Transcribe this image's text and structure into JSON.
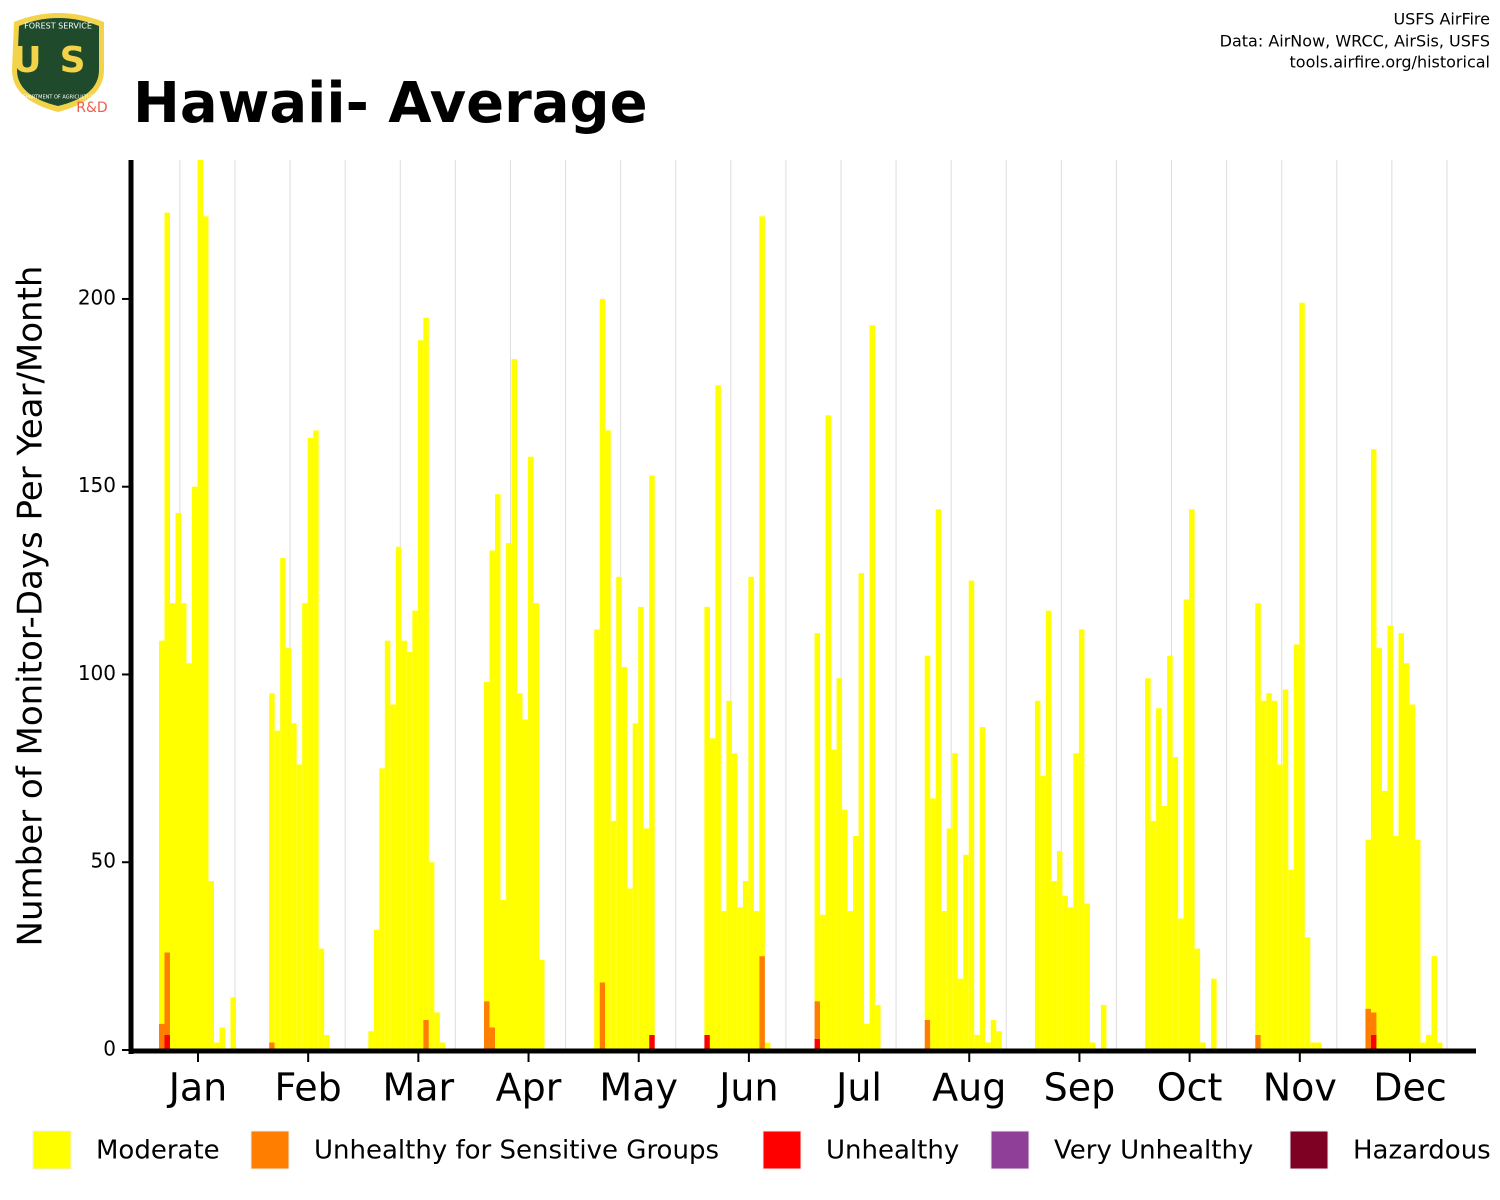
{
  "logo": {
    "top": "FOREST SERVICE",
    "letters": "US",
    "bottom": "DEPARTMENT OF AGRICULTURE",
    "tag": "R&D"
  },
  "credits": [
    "USFS AirFire",
    "Data: AirNow, WRCC, AirSis, USFS",
    "tools.airfire.org/historical"
  ],
  "chart_data": {
    "type": "bar",
    "stacked": true,
    "title": "Hawaii- Average",
    "y_label": "Number of Monitor-Days Per Year/Month",
    "categories": [
      "Jan",
      "Feb",
      "Mar",
      "Apr",
      "May",
      "Jun",
      "Jul",
      "Aug",
      "Sep",
      "Oct",
      "Nov",
      "Dec"
    ],
    "ylim": [
      0,
      237
    ],
    "yticks": [
      0,
      50,
      100,
      150,
      200
    ],
    "grid": true,
    "series": [
      {
        "name": "Moderate",
        "color": "#ffff00",
        "values": [
          [
            0,
            0,
            102,
            197,
            119,
            143,
            119,
            103,
            150,
            240,
            222,
            45,
            2,
            6,
            0,
            14,
            0,
            0
          ],
          [
            0,
            0,
            93,
            85,
            131,
            107,
            87,
            76,
            119,
            163,
            165,
            27,
            4,
            0,
            0,
            0,
            0,
            0
          ],
          [
            5,
            32,
            75,
            109,
            92,
            134,
            109,
            106,
            117,
            189,
            187,
            50,
            10,
            2,
            0,
            0,
            0,
            0
          ],
          [
            0,
            85,
            127,
            148,
            40,
            135,
            184,
            95,
            88,
            158,
            119,
            24,
            0,
            0,
            0,
            0,
            0,
            0
          ],
          [
            0,
            112,
            182,
            165,
            61,
            126,
            102,
            43,
            87,
            118,
            59,
            149,
            0,
            0,
            0,
            0,
            0,
            0
          ],
          [
            0,
            114,
            83,
            177,
            37,
            93,
            79,
            38,
            45,
            126,
            37,
            197,
            2,
            0,
            0,
            0,
            0,
            0
          ],
          [
            0,
            98,
            36,
            169,
            80,
            99,
            64,
            37,
            57,
            127,
            7,
            193,
            12,
            0,
            0,
            0,
            0,
            0
          ],
          [
            0,
            97,
            67,
            144,
            37,
            59,
            79,
            19,
            52,
            125,
            4,
            86,
            2,
            8,
            5,
            0,
            0,
            0
          ],
          [
            0,
            93,
            73,
            117,
            45,
            53,
            41,
            38,
            79,
            112,
            39,
            2,
            0,
            12,
            0,
            0,
            0,
            0
          ],
          [
            0,
            99,
            61,
            91,
            65,
            105,
            78,
            35,
            120,
            144,
            27,
            2,
            0,
            19,
            0,
            0,
            0,
            0
          ],
          [
            0,
            115,
            93,
            95,
            93,
            76,
            96,
            48,
            108,
            199,
            30,
            2,
            2,
            0,
            0,
            0,
            0,
            0
          ],
          [
            0,
            45,
            150,
            107,
            69,
            113,
            57,
            111,
            103,
            92,
            56,
            2,
            4,
            25,
            2,
            0,
            0,
            0
          ]
        ]
      },
      {
        "name": "Unhealthy for Sensitive Groups",
        "color": "#ff7e00",
        "values": [
          [
            0,
            0,
            7,
            22,
            0,
            0,
            0,
            0,
            0,
            0,
            0,
            0,
            0,
            0,
            0,
            0,
            0,
            0
          ],
          [
            0,
            0,
            2,
            0,
            0,
            0,
            0,
            0,
            0,
            0,
            0,
            0,
            0,
            0,
            0,
            0,
            0,
            0
          ],
          [
            0,
            0,
            0,
            0,
            0,
            0,
            0,
            0,
            0,
            0,
            8,
            0,
            0,
            0,
            0,
            0,
            0,
            0
          ],
          [
            0,
            13,
            6,
            0,
            0,
            0,
            0,
            0,
            0,
            0,
            0,
            0,
            0,
            0,
            0,
            0,
            0,
            0
          ],
          [
            0,
            0,
            18,
            0,
            0,
            0,
            0,
            0,
            0,
            0,
            0,
            0,
            0,
            0,
            0,
            0,
            0,
            0
          ],
          [
            0,
            0,
            0,
            0,
            0,
            0,
            0,
            0,
            0,
            0,
            0,
            25,
            0,
            0,
            0,
            0,
            0,
            0
          ],
          [
            0,
            10,
            0,
            0,
            0,
            0,
            0,
            0,
            0,
            0,
            0,
            0,
            0,
            0,
            0,
            0,
            0,
            0
          ],
          [
            0,
            8,
            0,
            0,
            0,
            0,
            0,
            0,
            0,
            0,
            0,
            0,
            0,
            0,
            0,
            0,
            0,
            0
          ],
          [
            0,
            0,
            0,
            0,
            0,
            0,
            0,
            0,
            0,
            0,
            0,
            0,
            0,
            0,
            0,
            0,
            0,
            0
          ],
          [
            0,
            0,
            0,
            0,
            0,
            0,
            0,
            0,
            0,
            0,
            0,
            0,
            0,
            0,
            0,
            0,
            0,
            0
          ],
          [
            0,
            4,
            0,
            0,
            0,
            0,
            0,
            0,
            0,
            0,
            0,
            0,
            0,
            0,
            0,
            0,
            0,
            0
          ],
          [
            0,
            11,
            6,
            0,
            0,
            0,
            0,
            0,
            0,
            0,
            0,
            0,
            0,
            0,
            0,
            0,
            0,
            0
          ]
        ]
      },
      {
        "name": "Unhealthy",
        "color": "#ff0000",
        "values": [
          [
            0,
            0,
            0,
            4,
            0,
            0,
            0,
            0,
            0,
            0,
            0,
            0,
            0,
            0,
            0,
            0,
            0,
            0
          ],
          [
            0,
            0,
            0,
            0,
            0,
            0,
            0,
            0,
            0,
            0,
            0,
            0,
            0,
            0,
            0,
            0,
            0,
            0
          ],
          [
            0,
            0,
            0,
            0,
            0,
            0,
            0,
            0,
            0,
            0,
            0,
            0,
            0,
            0,
            0,
            0,
            0,
            0
          ],
          [
            0,
            0,
            0,
            0,
            0,
            0,
            0,
            0,
            0,
            0,
            0,
            0,
            0,
            0,
            0,
            0,
            0,
            0
          ],
          [
            0,
            0,
            0,
            0,
            0,
            0,
            0,
            0,
            0,
            0,
            0,
            4,
            0,
            0,
            0,
            0,
            0,
            0
          ],
          [
            0,
            4,
            0,
            0,
            0,
            0,
            0,
            0,
            0,
            0,
            0,
            0,
            0,
            0,
            0,
            0,
            0,
            0
          ],
          [
            0,
            3,
            0,
            0,
            0,
            0,
            0,
            0,
            0,
            0,
            0,
            0,
            0,
            0,
            0,
            0,
            0,
            0
          ],
          [
            0,
            0,
            0,
            0,
            0,
            0,
            0,
            0,
            0,
            0,
            0,
            0,
            0,
            0,
            0,
            0,
            0,
            0
          ],
          [
            0,
            0,
            0,
            0,
            0,
            0,
            0,
            0,
            0,
            0,
            0,
            0,
            0,
            0,
            0,
            0,
            0,
            0
          ],
          [
            0,
            0,
            0,
            0,
            0,
            0,
            0,
            0,
            0,
            0,
            0,
            0,
            0,
            0,
            0,
            0,
            0,
            0
          ],
          [
            0,
            0,
            0,
            0,
            0,
            0,
            0,
            0,
            0,
            0,
            0,
            0,
            0,
            0,
            0,
            0,
            0,
            0
          ],
          [
            0,
            0,
            4,
            0,
            0,
            0,
            0,
            0,
            0,
            0,
            0,
            0,
            0,
            0,
            0,
            0,
            0,
            0
          ]
        ]
      },
      {
        "name": "Very Unhealthy",
        "color": "#8f3f97",
        "values": [
          [
            0,
            0,
            0,
            0,
            0,
            0,
            0,
            0,
            0,
            0,
            0,
            0,
            0,
            0,
            0,
            0,
            0,
            0
          ],
          [
            0,
            0,
            0,
            0,
            0,
            0,
            0,
            0,
            0,
            0,
            0,
            0,
            0,
            0,
            0,
            0,
            0,
            0
          ],
          [
            0,
            0,
            0,
            0,
            0,
            0,
            0,
            0,
            0,
            0,
            0,
            0,
            0,
            0,
            0,
            0,
            0,
            0
          ],
          [
            0,
            0,
            0,
            0,
            0,
            0,
            0,
            0,
            0,
            0,
            0,
            0,
            0,
            0,
            0,
            0,
            0,
            0
          ],
          [
            0,
            0,
            0,
            0,
            0,
            0,
            0,
            0,
            0,
            0,
            0,
            0,
            0,
            0,
            0,
            0,
            0,
            0
          ],
          [
            0,
            0,
            0,
            0,
            0,
            0,
            0,
            0,
            0,
            0,
            0,
            0,
            0,
            0,
            0,
            0,
            0,
            0
          ],
          [
            0,
            0,
            0,
            0,
            0,
            0,
            0,
            0,
            0,
            0,
            0,
            0,
            0,
            0,
            0,
            0,
            0,
            0
          ],
          [
            0,
            0,
            0,
            0,
            0,
            0,
            0,
            0,
            0,
            0,
            0,
            0,
            0,
            0,
            0,
            0,
            0,
            0
          ],
          [
            0,
            0,
            0,
            0,
            0,
            0,
            0,
            0,
            0,
            0,
            0,
            0,
            0,
            0,
            0,
            0,
            0,
            0
          ],
          [
            0,
            0,
            0,
            0,
            0,
            0,
            0,
            0,
            0,
            0,
            0,
            0,
            0,
            0,
            0,
            0,
            0,
            0
          ],
          [
            0,
            0,
            0,
            0,
            0,
            0,
            0,
            0,
            0,
            0,
            0,
            0,
            0,
            0,
            0,
            0,
            0,
            0
          ],
          [
            0,
            0,
            0,
            0,
            0,
            0,
            0,
            0,
            0,
            0,
            0,
            0,
            0,
            0,
            0,
            0,
            0,
            0
          ]
        ]
      },
      {
        "name": "Hazardous",
        "color": "#7e0023",
        "values": [
          [
            0,
            0,
            0,
            0,
            0,
            0,
            0,
            0,
            0,
            0,
            0,
            0,
            0,
            0,
            0,
            0,
            0,
            0
          ],
          [
            0,
            0,
            0,
            0,
            0,
            0,
            0,
            0,
            0,
            0,
            0,
            0,
            0,
            0,
            0,
            0,
            0,
            0
          ],
          [
            0,
            0,
            0,
            0,
            0,
            0,
            0,
            0,
            0,
            0,
            0,
            0,
            0,
            0,
            0,
            0,
            0,
            0
          ],
          [
            0,
            0,
            0,
            0,
            0,
            0,
            0,
            0,
            0,
            0,
            0,
            0,
            0,
            0,
            0,
            0,
            0,
            0
          ],
          [
            0,
            0,
            0,
            0,
            0,
            0,
            0,
            0,
            0,
            0,
            0,
            0,
            0,
            0,
            0,
            0,
            0,
            0
          ],
          [
            0,
            0,
            0,
            0,
            0,
            0,
            0,
            0,
            0,
            0,
            0,
            0,
            0,
            0,
            0,
            0,
            0,
            0
          ],
          [
            0,
            0,
            0,
            0,
            0,
            0,
            0,
            0,
            0,
            0,
            0,
            0,
            0,
            0,
            0,
            0,
            0,
            0
          ],
          [
            0,
            0,
            0,
            0,
            0,
            0,
            0,
            0,
            0,
            0,
            0,
            0,
            0,
            0,
            0,
            0,
            0,
            0
          ],
          [
            0,
            0,
            0,
            0,
            0,
            0,
            0,
            0,
            0,
            0,
            0,
            0,
            0,
            0,
            0,
            0,
            0,
            0
          ],
          [
            0,
            0,
            0,
            0,
            0,
            0,
            0,
            0,
            0,
            0,
            0,
            0,
            0,
            0,
            0,
            0,
            0,
            0
          ],
          [
            0,
            0,
            0,
            0,
            0,
            0,
            0,
            0,
            0,
            0,
            0,
            0,
            0,
            0,
            0,
            0,
            0,
            0
          ],
          [
            0,
            0,
            0,
            0,
            0,
            0,
            0,
            0,
            0,
            0,
            0,
            0,
            0,
            0,
            0,
            0,
            0,
            0
          ]
        ]
      }
    ]
  }
}
